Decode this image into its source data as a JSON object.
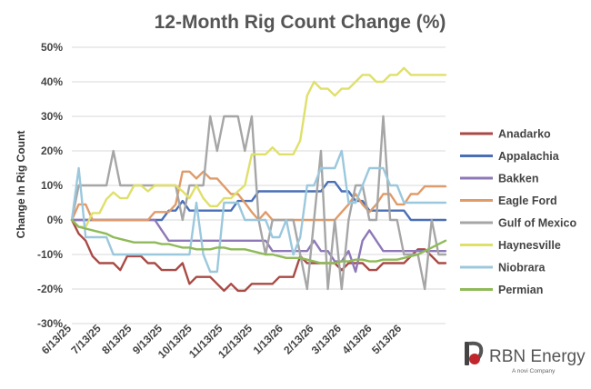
{
  "chart_data": {
    "type": "line",
    "title": "12-Month Rig Count Change (%)",
    "xlabel": "",
    "ylabel": "Change In Rig Count",
    "ylim": [
      -0.3,
      0.5
    ],
    "yticks": [
      "-30%",
      "-20%",
      "-10%",
      "0%",
      "10%",
      "20%",
      "30%",
      "40%",
      "50%"
    ],
    "ytick_values": [
      -0.3,
      -0.2,
      -0.1,
      0,
      0.1,
      0.2,
      0.3,
      0.4,
      0.5
    ],
    "xlim": [
      "2025-06-13",
      "2026-06-26"
    ],
    "xticks": [
      "6/13/25",
      "7/13/25",
      "8/13/25",
      "9/13/25",
      "10/13/25",
      "11/13/25",
      "12/13/25",
      "1/13/26",
      "2/13/26",
      "3/13/26",
      "4/13/26",
      "5/13/26"
    ],
    "xtick_dates": [
      "2025-06-13",
      "2025-07-13",
      "2025-08-13",
      "2025-09-13",
      "2025-10-13",
      "2025-11-13",
      "2025-12-13",
      "2026-01-13",
      "2026-02-13",
      "2026-03-13",
      "2026-04-13",
      "2026-05-13"
    ],
    "grid": true,
    "legend_position": "right",
    "x": [
      "2025-06-13",
      "2025-06-20",
      "2025-06-27",
      "2025-07-04",
      "2025-07-11",
      "2025-07-18",
      "2025-07-25",
      "2025-08-01",
      "2025-08-08",
      "2025-08-15",
      "2025-08-22",
      "2025-08-29",
      "2025-09-05",
      "2025-09-12",
      "2025-09-19",
      "2025-09-26",
      "2025-10-03",
      "2025-10-10",
      "2025-10-17",
      "2025-10-24",
      "2025-10-31",
      "2025-11-07",
      "2025-11-14",
      "2025-11-21",
      "2025-11-28",
      "2025-12-05",
      "2025-12-12",
      "2025-12-19",
      "2025-12-26",
      "2026-01-02",
      "2026-01-09",
      "2026-01-16",
      "2026-01-23",
      "2026-01-30",
      "2026-02-06",
      "2026-02-13",
      "2026-02-20",
      "2026-02-27",
      "2026-03-06",
      "2026-03-13",
      "2026-03-20",
      "2026-03-27",
      "2026-04-03",
      "2026-04-10",
      "2026-04-17",
      "2026-04-24",
      "2026-05-01",
      "2026-05-08",
      "2026-05-15",
      "2026-05-22",
      "2026-05-29",
      "2026-06-05",
      "2026-06-12",
      "2026-06-19",
      "2026-06-26"
    ],
    "series": [
      {
        "name": "Anadarko",
        "color": "#a94a45",
        "values": [
          0,
          -0.04,
          -0.06,
          -0.105,
          -0.125,
          -0.125,
          -0.125,
          -0.145,
          -0.105,
          -0.105,
          -0.105,
          -0.125,
          -0.125,
          -0.145,
          -0.145,
          -0.145,
          -0.125,
          -0.185,
          -0.165,
          -0.165,
          -0.165,
          -0.185,
          -0.205,
          -0.185,
          -0.205,
          -0.205,
          -0.185,
          -0.185,
          -0.185,
          -0.185,
          -0.165,
          -0.165,
          -0.165,
          -0.105,
          -0.125,
          -0.125,
          -0.125,
          -0.125,
          -0.125,
          -0.145,
          -0.125,
          -0.125,
          -0.125,
          -0.145,
          -0.145,
          -0.125,
          -0.125,
          -0.125,
          -0.125,
          -0.105,
          -0.085,
          -0.085,
          -0.105,
          -0.125,
          -0.125
        ]
      },
      {
        "name": "Appalachia",
        "color": "#4a6fb5",
        "values": [
          0,
          0,
          0,
          0,
          0,
          0,
          0,
          0,
          0,
          0,
          0,
          0,
          0,
          0,
          0.027,
          0.027,
          0.055,
          0.027,
          0.027,
          0.027,
          0.027,
          0.027,
          0.027,
          0.027,
          0.055,
          0.055,
          0.055,
          0.083,
          0.083,
          0.083,
          0.083,
          0.083,
          0.083,
          0.083,
          0.083,
          0.083,
          0.083,
          0.11,
          0.11,
          0.083,
          0.083,
          0.055,
          0.055,
          0.027,
          0.027,
          0.027,
          0.027,
          0.027,
          0.027,
          0,
          0,
          0,
          0,
          0,
          0
        ]
      },
      {
        "name": "Bakken",
        "color": "#8e78b8",
        "values": [
          0,
          0,
          0,
          0,
          0,
          0,
          0,
          0,
          0,
          0,
          0,
          0,
          0,
          -0.03,
          -0.06,
          -0.06,
          -0.06,
          -0.06,
          -0.06,
          -0.06,
          -0.06,
          -0.06,
          -0.06,
          -0.06,
          -0.06,
          -0.06,
          -0.06,
          -0.06,
          -0.06,
          -0.09,
          -0.09,
          -0.09,
          -0.09,
          -0.09,
          -0.09,
          -0.06,
          -0.09,
          -0.09,
          -0.12,
          -0.12,
          -0.09,
          -0.15,
          -0.06,
          -0.03,
          -0.06,
          -0.09,
          -0.09,
          -0.09,
          -0.09,
          -0.09,
          -0.09,
          -0.09,
          -0.09,
          -0.09,
          -0.09
        ]
      },
      {
        "name": "Eagle Ford",
        "color": "#e09b6a",
        "values": [
          0,
          0.045,
          0.045,
          0,
          0,
          0,
          0,
          0,
          0,
          0,
          0,
          0,
          0.023,
          0.023,
          0.023,
          0.045,
          0.14,
          0.14,
          0.12,
          0.14,
          0.12,
          0.12,
          0.097,
          0.075,
          0.075,
          0.05,
          0.023,
          0,
          0.023,
          0,
          0,
          0,
          0,
          0,
          0,
          0,
          0,
          0,
          0,
          0.023,
          0.045,
          0.075,
          0.045,
          0.023,
          0.045,
          0.075,
          0.075,
          0.045,
          0.045,
          0.075,
          0.075,
          0.097,
          0.097,
          0.097,
          0.097
        ]
      },
      {
        "name": "Gulf of Mexico",
        "color": "#a6a6a6",
        "values": [
          0,
          0.1,
          0.1,
          0.1,
          0.1,
          0.1,
          0.2,
          0.1,
          0.1,
          0.1,
          0.1,
          0.1,
          0.1,
          0.1,
          0.1,
          0.1,
          0,
          0.1,
          0.1,
          0.1,
          0.3,
          0.2,
          0.3,
          0.3,
          0.3,
          0.2,
          0.3,
          0,
          -0.1,
          0,
          0,
          0,
          0,
          -0.1,
          -0.2,
          0,
          0.2,
          -0.2,
          0,
          -0.2,
          0,
          0.1,
          0.1,
          0,
          0,
          0.3,
          0,
          0,
          -0.1,
          -0.1,
          -0.1,
          -0.2,
          0,
          -0.1,
          -0.1
        ]
      },
      {
        "name": "Haynesville",
        "color": "#dfe06a",
        "values": [
          0,
          -0.02,
          -0.02,
          0.02,
          0.02,
          0.06,
          0.08,
          0.063,
          0.063,
          0.1,
          0.1,
          0.083,
          0.1,
          0.1,
          0.1,
          0.1,
          0.083,
          0.063,
          0.1,
          0.063,
          0.04,
          0.04,
          0.063,
          0.063,
          0.083,
          0.1,
          0.19,
          0.19,
          0.19,
          0.21,
          0.19,
          0.19,
          0.19,
          0.23,
          0.36,
          0.4,
          0.38,
          0.38,
          0.36,
          0.38,
          0.38,
          0.4,
          0.42,
          0.42,
          0.4,
          0.4,
          0.42,
          0.42,
          0.44,
          0.42,
          0.42,
          0.42,
          0.42,
          0.42,
          0.42
        ]
      },
      {
        "name": "Niobrara",
        "color": "#9cc8dd",
        "values": [
          0,
          0.15,
          -0.05,
          -0.05,
          -0.05,
          -0.05,
          -0.1,
          -0.1,
          -0.1,
          -0.1,
          -0.1,
          -0.1,
          -0.1,
          -0.1,
          -0.1,
          -0.1,
          -0.1,
          -0.1,
          0.05,
          -0.1,
          -0.15,
          -0.15,
          0.05,
          0.05,
          0.05,
          0,
          0,
          0,
          0,
          -0.05,
          -0.05,
          0,
          -0.1,
          -0.05,
          0.1,
          0.1,
          0.15,
          0.15,
          0.15,
          0.2,
          0.05,
          0.05,
          0.1,
          0.15,
          0.15,
          0.15,
          0.1,
          0.1,
          0.05,
          0.05,
          0.05,
          0.05,
          0.05,
          0.05,
          0.05
        ]
      },
      {
        "name": "Permian",
        "color": "#8fba59",
        "values": [
          0,
          -0.02,
          -0.025,
          -0.03,
          -0.035,
          -0.04,
          -0.05,
          -0.055,
          -0.06,
          -0.065,
          -0.065,
          -0.065,
          -0.065,
          -0.07,
          -0.07,
          -0.075,
          -0.08,
          -0.08,
          -0.085,
          -0.085,
          -0.085,
          -0.08,
          -0.08,
          -0.085,
          -0.085,
          -0.085,
          -0.09,
          -0.095,
          -0.1,
          -0.1,
          -0.105,
          -0.11,
          -0.11,
          -0.11,
          -0.115,
          -0.12,
          -0.125,
          -0.125,
          -0.125,
          -0.12,
          -0.12,
          -0.115,
          -0.115,
          -0.12,
          -0.12,
          -0.115,
          -0.115,
          -0.115,
          -0.11,
          -0.105,
          -0.1,
          -0.09,
          -0.08,
          -0.07,
          -0.06
        ]
      }
    ]
  },
  "logo": {
    "brand": "RBN Energy",
    "tagline": "A novi Company"
  }
}
